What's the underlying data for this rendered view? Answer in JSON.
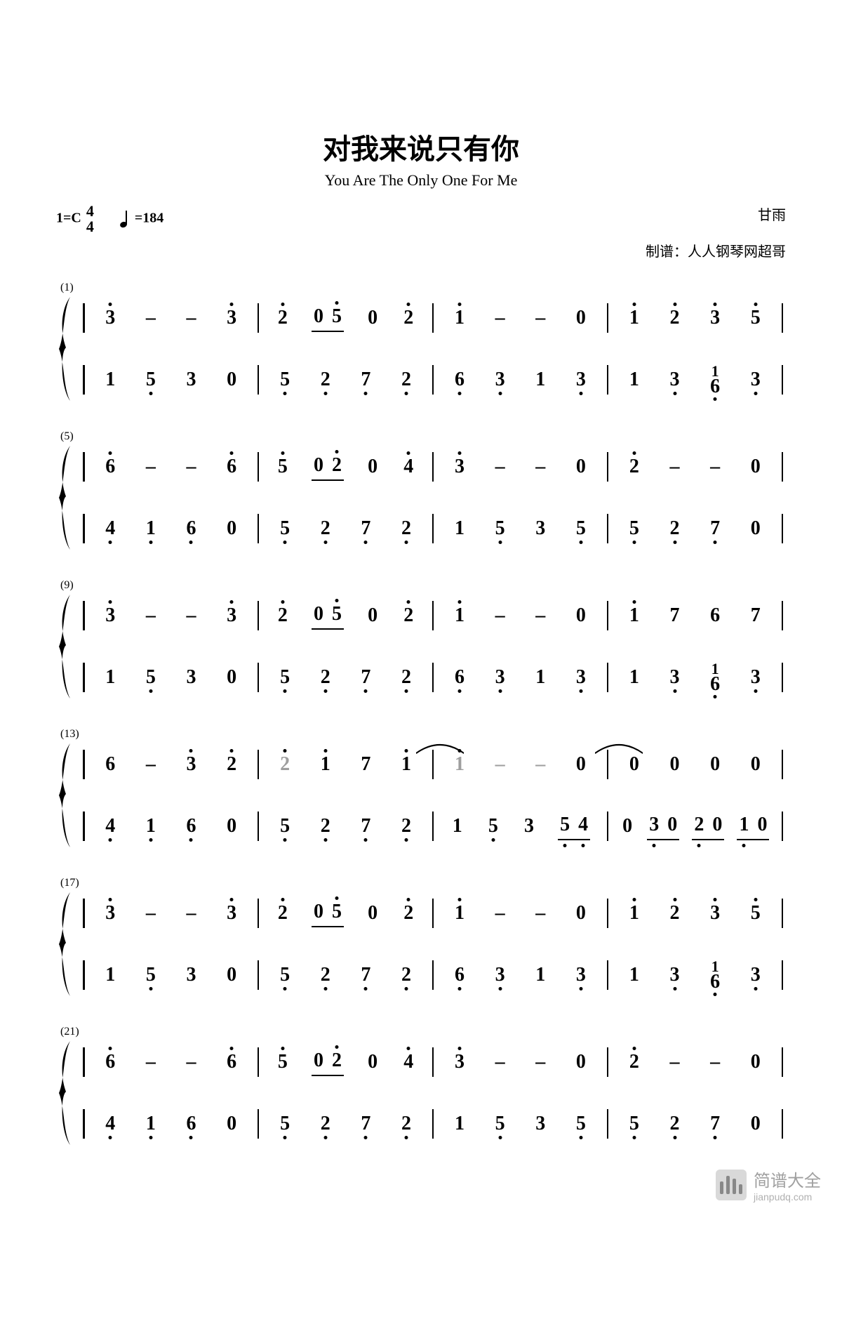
{
  "title": "对我来说只有你",
  "subtitle": "You Are The Only One For Me",
  "key_sig": "1=C",
  "time_sig_top": "4",
  "time_sig_bot": "4",
  "tempo_label": "=184",
  "composer": "甘雨",
  "arranger": "制谱：人人钢琴网超哥",
  "watermark_cn": "简谱大全",
  "watermark_en": "jianpudq.com",
  "colors": {
    "text": "#000000",
    "grey_note": "#9e9e9e",
    "background": "#ffffff",
    "watermark": "#b0b0b0"
  },
  "typography": {
    "title_fontsize": 40,
    "subtitle_fontsize": 22,
    "note_fontsize": 28,
    "barnum_fontsize": 16
  },
  "systems": [
    {
      "bar_number": "(1)",
      "top": [
        [
          {
            "n": "3",
            "hi": 1
          },
          {
            "n": "–"
          },
          {
            "n": "–"
          },
          {
            "n": "3",
            "hi": 1
          }
        ],
        [
          {
            "n": "2",
            "hi": 1
          },
          {
            "beam": [
              {
                "n": "0"
              },
              {
                "n": "5",
                "hi": 1
              }
            ]
          },
          {
            "n": "0"
          },
          {
            "n": "2",
            "hi": 1
          }
        ],
        [
          {
            "n": "1",
            "hi": 1
          },
          {
            "n": "–"
          },
          {
            "n": "–"
          },
          {
            "n": "0"
          }
        ],
        [
          {
            "n": "1",
            "hi": 1
          },
          {
            "n": "2",
            "hi": 1
          },
          {
            "n": "3",
            "hi": 1
          },
          {
            "n": "5",
            "hi": 1
          }
        ]
      ],
      "bot": [
        [
          {
            "n": "1"
          },
          {
            "n": "5",
            "lo": 1
          },
          {
            "n": "3"
          },
          {
            "n": "0"
          }
        ],
        [
          {
            "n": "5",
            "lo": 1
          },
          {
            "n": "2",
            "lo": 1
          },
          {
            "n": "7",
            "lo": 1
          },
          {
            "n": "2",
            "lo": 1
          }
        ],
        [
          {
            "n": "6",
            "lo": 1
          },
          {
            "n": "3",
            "lo": 1
          },
          {
            "n": "1"
          },
          {
            "n": "3",
            "lo": 1
          }
        ],
        [
          {
            "n": "1"
          },
          {
            "n": "3",
            "lo": 1
          },
          {
            "stack": [
              "1",
              "6"
            ],
            "lo": 1
          },
          {
            "n": "3",
            "lo": 1
          }
        ]
      ]
    },
    {
      "bar_number": "(5)",
      "top": [
        [
          {
            "n": "6",
            "hi": 1
          },
          {
            "n": "–"
          },
          {
            "n": "–"
          },
          {
            "n": "6",
            "hi": 1
          }
        ],
        [
          {
            "n": "5",
            "hi": 1
          },
          {
            "beam": [
              {
                "n": "0"
              },
              {
                "n": "2",
                "hi": 1
              }
            ]
          },
          {
            "n": "0"
          },
          {
            "n": "4",
            "hi": 1
          }
        ],
        [
          {
            "n": "3",
            "hi": 1
          },
          {
            "n": "–"
          },
          {
            "n": "–"
          },
          {
            "n": "0"
          }
        ],
        [
          {
            "n": "2",
            "hi": 1
          },
          {
            "n": "–"
          },
          {
            "n": "–"
          },
          {
            "n": "0"
          }
        ]
      ],
      "bot": [
        [
          {
            "n": "4",
            "lo": 1
          },
          {
            "n": "1",
            "lo": 1
          },
          {
            "n": "6",
            "lo": 1
          },
          {
            "n": "0"
          }
        ],
        [
          {
            "n": "5",
            "lo": 1
          },
          {
            "n": "2",
            "lo": 1
          },
          {
            "n": "7",
            "lo": 1
          },
          {
            "n": "2",
            "lo": 1
          }
        ],
        [
          {
            "n": "1"
          },
          {
            "n": "5",
            "lo": 1
          },
          {
            "n": "3"
          },
          {
            "n": "5",
            "lo": 1
          }
        ],
        [
          {
            "n": "5",
            "lo": 1
          },
          {
            "n": "2",
            "lo": 1
          },
          {
            "n": "7",
            "lo": 1
          },
          {
            "n": "0"
          }
        ]
      ]
    },
    {
      "bar_number": "(9)",
      "top": [
        [
          {
            "n": "3",
            "hi": 1
          },
          {
            "n": "–"
          },
          {
            "n": "–"
          },
          {
            "n": "3",
            "hi": 1
          }
        ],
        [
          {
            "n": "2",
            "hi": 1
          },
          {
            "beam": [
              {
                "n": "0"
              },
              {
                "n": "5",
                "hi": 1
              }
            ]
          },
          {
            "n": "0"
          },
          {
            "n": "2",
            "hi": 1
          }
        ],
        [
          {
            "n": "1",
            "hi": 1
          },
          {
            "n": "–"
          },
          {
            "n": "–"
          },
          {
            "n": "0"
          }
        ],
        [
          {
            "n": "1",
            "hi": 1
          },
          {
            "n": "7"
          },
          {
            "n": "6"
          },
          {
            "n": "7"
          }
        ]
      ],
      "bot": [
        [
          {
            "n": "1"
          },
          {
            "n": "5",
            "lo": 1
          },
          {
            "n": "3"
          },
          {
            "n": "0"
          }
        ],
        [
          {
            "n": "5",
            "lo": 1
          },
          {
            "n": "2",
            "lo": 1
          },
          {
            "n": "7",
            "lo": 1
          },
          {
            "n": "2",
            "lo": 1
          }
        ],
        [
          {
            "n": "6",
            "lo": 1
          },
          {
            "n": "3",
            "lo": 1
          },
          {
            "n": "1"
          },
          {
            "n": "3",
            "lo": 1
          }
        ],
        [
          {
            "n": "1"
          },
          {
            "n": "3",
            "lo": 1
          },
          {
            "stack": [
              "1",
              "6"
            ],
            "lo": 1
          },
          {
            "n": "3",
            "lo": 1
          }
        ]
      ]
    },
    {
      "bar_number": "(13)",
      "ties": [
        {
          "from_measure": 1,
          "from_beat": 3,
          "to_measure": 2,
          "to_beat": 0
        },
        {
          "from_measure": 2,
          "from_beat": 3,
          "to_measure": 3,
          "to_beat": 0
        }
      ],
      "top": [
        [
          {
            "n": "6"
          },
          {
            "n": "–"
          },
          {
            "n": "3",
            "hi": 1
          },
          {
            "n": "2",
            "hi": 1
          }
        ],
        [
          {
            "n": "2",
            "hi": 1,
            "grey": true
          },
          {
            "n": "1",
            "hi": 1
          },
          {
            "n": "7"
          },
          {
            "n": "1",
            "hi": 1
          }
        ],
        [
          {
            "n": "1",
            "hi": 1,
            "grey": true
          },
          {
            "n": "–",
            "grey": true
          },
          {
            "n": "–",
            "grey": true
          },
          {
            "n": "0"
          }
        ],
        [
          {
            "n": "0"
          },
          {
            "n": "0"
          },
          {
            "n": "0"
          },
          {
            "n": "0"
          }
        ]
      ],
      "bot": [
        [
          {
            "n": "4",
            "lo": 1
          },
          {
            "n": "1",
            "lo": 1
          },
          {
            "n": "6",
            "lo": 1
          },
          {
            "n": "0"
          }
        ],
        [
          {
            "n": "5",
            "lo": 1
          },
          {
            "n": "2",
            "lo": 1
          },
          {
            "n": "7",
            "lo": 1
          },
          {
            "n": "2",
            "lo": 1
          }
        ],
        [
          {
            "n": "1"
          },
          {
            "n": "5",
            "lo": 1
          },
          {
            "n": "3"
          },
          {
            "beam": [
              {
                "n": "5",
                "lo": 1
              },
              {
                "n": "4",
                "lo": 1
              }
            ]
          }
        ],
        [
          {
            "n": "0"
          },
          {
            "beam": [
              {
                "n": "3",
                "lo": 1
              },
              {
                "n": "0"
              }
            ]
          },
          {
            "beam": [
              {
                "n": "2",
                "lo": 1
              },
              {
                "n": "0"
              }
            ]
          },
          {
            "beam": [
              {
                "n": "1",
                "lo": 1
              },
              {
                "n": "0"
              }
            ]
          }
        ]
      ]
    },
    {
      "bar_number": "(17)",
      "top": [
        [
          {
            "n": "3",
            "hi": 1
          },
          {
            "n": "–"
          },
          {
            "n": "–"
          },
          {
            "n": "3",
            "hi": 1
          }
        ],
        [
          {
            "n": "2",
            "hi": 1
          },
          {
            "beam": [
              {
                "n": "0"
              },
              {
                "n": "5",
                "hi": 1
              }
            ]
          },
          {
            "n": "0"
          },
          {
            "n": "2",
            "hi": 1
          }
        ],
        [
          {
            "n": "1",
            "hi": 1
          },
          {
            "n": "–"
          },
          {
            "n": "–"
          },
          {
            "n": "0"
          }
        ],
        [
          {
            "n": "1",
            "hi": 1
          },
          {
            "n": "2",
            "hi": 1
          },
          {
            "n": "3",
            "hi": 1
          },
          {
            "n": "5",
            "hi": 1
          }
        ]
      ],
      "bot": [
        [
          {
            "n": "1"
          },
          {
            "n": "5",
            "lo": 1
          },
          {
            "n": "3"
          },
          {
            "n": "0"
          }
        ],
        [
          {
            "n": "5",
            "lo": 1
          },
          {
            "n": "2",
            "lo": 1
          },
          {
            "n": "7",
            "lo": 1
          },
          {
            "n": "2",
            "lo": 1
          }
        ],
        [
          {
            "n": "6",
            "lo": 1
          },
          {
            "n": "3",
            "lo": 1
          },
          {
            "n": "1"
          },
          {
            "n": "3",
            "lo": 1
          }
        ],
        [
          {
            "n": "1"
          },
          {
            "n": "3",
            "lo": 1
          },
          {
            "stack": [
              "1",
              "6"
            ],
            "lo": 1
          },
          {
            "n": "3",
            "lo": 1
          }
        ]
      ]
    },
    {
      "bar_number": "(21)",
      "top": [
        [
          {
            "n": "6",
            "hi": 1
          },
          {
            "n": "–"
          },
          {
            "n": "–"
          },
          {
            "n": "6",
            "hi": 1
          }
        ],
        [
          {
            "n": "5",
            "hi": 1
          },
          {
            "beam": [
              {
                "n": "0"
              },
              {
                "n": "2",
                "hi": 1
              }
            ]
          },
          {
            "n": "0"
          },
          {
            "n": "4",
            "hi": 1
          }
        ],
        [
          {
            "n": "3",
            "hi": 1
          },
          {
            "n": "–"
          },
          {
            "n": "–"
          },
          {
            "n": "0"
          }
        ],
        [
          {
            "n": "2",
            "hi": 1
          },
          {
            "n": "–"
          },
          {
            "n": "–"
          },
          {
            "n": "0"
          }
        ]
      ],
      "bot": [
        [
          {
            "n": "4",
            "lo": 1
          },
          {
            "n": "1",
            "lo": 1
          },
          {
            "n": "6",
            "lo": 1
          },
          {
            "n": "0"
          }
        ],
        [
          {
            "n": "5",
            "lo": 1
          },
          {
            "n": "2",
            "lo": 1
          },
          {
            "n": "7",
            "lo": 1
          },
          {
            "n": "2",
            "lo": 1
          }
        ],
        [
          {
            "n": "1"
          },
          {
            "n": "5",
            "lo": 1
          },
          {
            "n": "3"
          },
          {
            "n": "5",
            "lo": 1
          }
        ],
        [
          {
            "n": "5",
            "lo": 1
          },
          {
            "n": "2",
            "lo": 1
          },
          {
            "n": "7",
            "lo": 1
          },
          {
            "n": "0"
          }
        ]
      ]
    }
  ]
}
